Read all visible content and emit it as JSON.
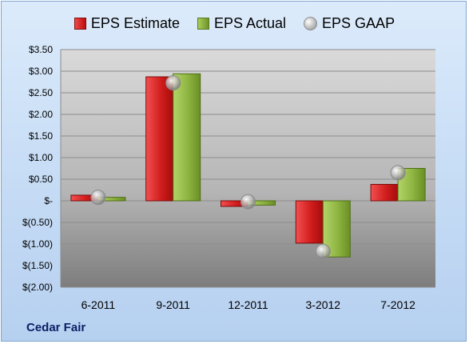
{
  "company": "Cedar Fair",
  "legend": {
    "estimate": "EPS Estimate",
    "actual": "EPS Actual",
    "gaap": "EPS GAAP"
  },
  "colors": {
    "estimate": "#d01c1c",
    "actual": "#8fb543",
    "gaap": "#bdbdbd",
    "plot_top": "#d7d7d7",
    "plot_bottom": "#7a7a7a",
    "background": "#c9def6"
  },
  "chart_data": {
    "type": "bar",
    "categories": [
      "6-2011",
      "9-2011",
      "12-2011",
      "3-2012",
      "7-2012"
    ],
    "series": [
      {
        "name": "EPS Estimate",
        "values": [
          0.13,
          2.87,
          -0.13,
          -0.98,
          0.38
        ]
      },
      {
        "name": "EPS Actual",
        "values": [
          0.08,
          2.94,
          -0.1,
          -1.3,
          0.75
        ]
      },
      {
        "name": "EPS GAAP",
        "type": "scatter",
        "values": [
          0.08,
          2.73,
          -0.02,
          -1.17,
          0.65
        ]
      }
    ],
    "ylim": [
      -2.0,
      3.5
    ],
    "yticks": [
      3.5,
      3.0,
      2.5,
      2.0,
      1.5,
      1.0,
      0.5,
      0,
      -0.5,
      -1.0,
      -1.5,
      -2.0
    ],
    "ytick_labels": [
      "$3.50",
      "$3.00",
      "$2.50",
      "$2.00",
      "$1.50",
      "$1.00",
      "$0.50",
      "$-",
      "$(0.50)",
      "$(1.00)",
      "$(1.50)",
      "$(2.00)"
    ],
    "grid": true,
    "legend_position": "top"
  }
}
